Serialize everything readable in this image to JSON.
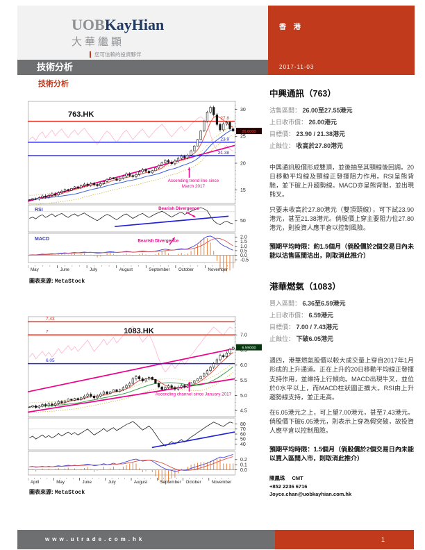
{
  "colors": {
    "accent_red": "#c23a1c",
    "bar_gray": "#6e6f71",
    "logo_navy": "#233a63",
    "logo_gray": "#8f9194",
    "magenta": "#ec008c"
  },
  "header": {
    "logo": {
      "uob": "UOB",
      "kayhian": "KayHian",
      "chinese": "大華繼顯",
      "tagline": "您可信賴的投資夥伴"
    },
    "region": "香 港",
    "section_title": "技術分析",
    "date": "2017-11-03"
  },
  "page": {
    "column_heading": "技術分析"
  },
  "footer": {
    "url": "www.utrade.com.hk",
    "page_number": "1"
  },
  "chart_source": {
    "label": "圖表來源:",
    "value": "MetaStock"
  },
  "stocks": [
    {
      "heading": "中興通訊（763）",
      "details": [
        {
          "label": "沽售區間： ",
          "value": "26.00至27.55港元"
        },
        {
          "label": "上日收市價： ",
          "value": "26.00港元"
        },
        {
          "label": "目標價： ",
          "value": "23.90 / 21.38港元"
        },
        {
          "label": "止蝕位： ",
          "value": "收高於27.80港元"
        }
      ],
      "paragraphs": [
        "中興通訊股價形成雙頂，並後抽至其頸線後回調。20日移動平均線及頸線正發揮阻力作用。RSI呈熊背馳，並下破上升趨勢線。MACD亦呈熊背馳，並出現熊叉。",
        "只要未收高於27.80港元（雙頂頸線），可下試23.90港元，甚至21.38港元。倘股價上穿主要阻力位27.80港元，則投資人應平倉以控制風險。"
      ],
      "note": "預期平均時限：約1.5個月（倘股價於2個交易日內未能以沽售區間沽出，則取消此推介）"
    },
    {
      "heading": "港華燃氣（1083）",
      "details": [
        {
          "label": "買入區間： ",
          "value": "6.36至6.59港元"
        },
        {
          "label": "上日收市價： ",
          "value": "6.59港元"
        },
        {
          "label": "目標價： ",
          "value": "7.00 / 7.43港元"
        },
        {
          "label": "止蝕位： ",
          "value": "下破6.05港元"
        }
      ],
      "paragraphs": [
        "週四，港華燃氣股價以較大成交量上穿自2017年1月形成的上升通道。正在上升的20日移動平均線正發揮支持作用，並維持上行傾向。MACD出現牛叉，並位於0水平以上，而MACD柱狀圖正擴大。RSI由上升趨勢線支持，並正走高。",
        "在6.05港元之上，可上望7.00港元，甚至7.43港元。倘股價下破6.05港元，則表示上穿為假突破，故投資人應平倉以控制風險。"
      ],
      "note": "預期平均時限：1.5個月（倘股價於2個交易日內未能以買入區間入市，則取消此推介）"
    }
  ],
  "analyst": {
    "name": "陳鳳珠",
    "title": "CMT",
    "phone": "+852 2236 6716",
    "email": "Joyce.chan@uobkayhian.com.hk"
  },
  "chart_data": [
    {
      "type": "candlestick",
      "label": "763.HK",
      "colors": {
        "magenta": "#ec008c"
      },
      "ma_colors": [
        "#e05544",
        "#3a5fd9"
      ],
      "months": [
        "May",
        "June",
        "July",
        "August",
        "September",
        "October",
        "November"
      ],
      "price_ticks": [
        {
          "v": 30,
          "label": "30"
        },
        {
          "v": 25,
          "label": "25"
        },
        {
          "v": 20,
          "label": "20"
        },
        {
          "v": 15,
          "label": "15"
        }
      ],
      "levels": [
        {
          "value": 27.8,
          "label": "27.8",
          "color": "#e03022"
        },
        {
          "value": 23.9,
          "label": "23.9",
          "color": "#2a2ad0"
        },
        {
          "value": 21.38,
          "label": "21.38",
          "color": "#2a2ad0"
        }
      ],
      "last": {
        "value": 26.0,
        "text": "26.0000",
        "bg": "#230303",
        "fg": "#ff4433"
      },
      "trendlines": [
        {
          "x1": 0,
          "p1": 12.9,
          "x2": 1,
          "p2": 23.3
        }
      ],
      "annotation": {
        "lines": [
          "Ascending trend line since",
          "March 2017"
        ],
        "x": 0.8,
        "price": 16.5,
        "arrow_x": 0.78,
        "arrow_from": 17.3,
        "arrow_to": 19.2
      },
      "rsi_label": "RSI",
      "rsi_grid": 70,
      "rsi_ticks": [
        50
      ],
      "rsi_trendline": {
        "x1": 0.42,
        "v1": 37,
        "x2": 0.97,
        "v2": 60
      },
      "rsi_annotation": {
        "text": "Bearish Divergence",
        "x": 0.73,
        "v": 74,
        "ax1": 0.765,
        "av1": 69,
        "ax2": 0.81,
        "av2": 58
      },
      "macd_label": "MACD",
      "macd_ticks": [
        2.0,
        1.5,
        1.0,
        0.5,
        0.0,
        -0.5
      ],
      "macd_annotation": {
        "text": "Bearish Divergence",
        "x": 0.63,
        "v": 1.45,
        "ax1": 0.685,
        "av1": 1.15,
        "ax2": 0.71,
        "av2": 1.95
      },
      "closes": [
        13.2,
        13.4,
        13.3,
        13.6,
        13.9,
        13.7,
        14.0,
        14.3,
        14.1,
        14.5,
        14.8,
        15.1,
        14.9,
        15.3,
        15.6,
        15.4,
        15.8,
        16.1,
        15.9,
        16.2,
        16.0,
        15.8,
        16.2,
        16.6,
        17.0,
        17.3,
        17.1,
        16.8,
        17.2,
        17.6,
        18.0,
        17.7,
        17.5,
        17.9,
        18.4,
        18.8,
        18.5,
        18.2,
        18.6,
        19.1,
        19.6,
        20.1,
        20.5,
        20.2,
        19.9,
        20.4,
        20.9,
        21.3,
        21.0,
        21.5,
        22.3,
        23.2,
        24.4,
        26.0,
        27.8,
        29.5,
        30.4,
        29.0,
        27.2,
        26.2,
        27.3,
        27.6,
        26.4,
        26.0
      ],
      "rsi": [
        55,
        58,
        54,
        60,
        63,
        57,
        61,
        65,
        59,
        63,
        66,
        61,
        57,
        62,
        65,
        60,
        64,
        67,
        62,
        58,
        54,
        50,
        55,
        60,
        64,
        61,
        56,
        52,
        57,
        62,
        65,
        60,
        55,
        59,
        63,
        66,
        61,
        57,
        61,
        65,
        68,
        71,
        67,
        62,
        58,
        62,
        66,
        69,
        64,
        67,
        71,
        74,
        77,
        79,
        76,
        72,
        60,
        50,
        44,
        41,
        46,
        49,
        45,
        43
      ],
      "macd": [
        0.02,
        0.05,
        0.04,
        0.08,
        0.12,
        0.1,
        0.13,
        0.17,
        0.14,
        0.18,
        0.22,
        0.26,
        0.22,
        0.26,
        0.3,
        0.27,
        0.31,
        0.35,
        0.31,
        0.33,
        0.28,
        0.22,
        0.24,
        0.29,
        0.35,
        0.39,
        0.36,
        0.3,
        0.32,
        0.37,
        0.42,
        0.38,
        0.33,
        0.35,
        0.41,
        0.46,
        0.42,
        0.37,
        0.39,
        0.45,
        0.52,
        0.6,
        0.66,
        0.61,
        0.55,
        0.59,
        0.66,
        0.72,
        0.66,
        0.71,
        0.85,
        1.02,
        1.25,
        1.55,
        1.85,
        2.05,
        2.1,
        1.95,
        1.65,
        1.3,
        1.05,
        0.9,
        0.7,
        0.55
      ],
      "axis": {
        "price_range": [
          12.5,
          31.5
        ],
        "rsi_range": [
          25,
          85
        ],
        "macd_range": [
          -0.8,
          2.4
        ]
      }
    },
    {
      "type": "candlestick",
      "label": "1083.HK",
      "colors": {
        "magenta": "#ec008c"
      },
      "ma_colors": [
        "#e05544",
        "#3aa14a"
      ],
      "months": [
        "April",
        "May",
        "June",
        "July",
        "August",
        "September",
        "October",
        "November"
      ],
      "price_ticks": [
        {
          "v": 7.0,
          "label": "7.0"
        },
        {
          "v": 6.5,
          "label": "6.5"
        },
        {
          "v": 6.0,
          "label": "6.0"
        },
        {
          "v": 5.5,
          "label": "5.5"
        },
        {
          "v": 5.0,
          "label": "5.0"
        },
        {
          "v": 4.5,
          "label": "4.5"
        }
      ],
      "levels": [
        {
          "value": 7.43,
          "label": "7.43",
          "color": "#e03022"
        },
        {
          "value": 7.0,
          "label": "7",
          "color": "#e03022"
        },
        {
          "value": 6.05,
          "label": "6.05",
          "color": "#2a2ad0"
        }
      ],
      "last": {
        "value": 6.59,
        "text": "6.59000",
        "bg": "#06350f",
        "fg": "#e8ffe8"
      },
      "trendlines": [
        {
          "x1": 0,
          "p1": 4.45,
          "x2": 1,
          "p2": 5.55
        },
        {
          "x1": 0,
          "p1": 5.12,
          "x2": 1,
          "p2": 6.55
        }
      ],
      "annotation": {
        "lines": [
          "Ascending channel since January 2017"
        ],
        "x": 0.8,
        "price": 5.0,
        "arrow_x": 0.78,
        "arrow_from": 5.13,
        "arrow_to": 5.45
      },
      "rsi_grid": 70,
      "rsi_ticks": [
        80,
        70,
        60,
        50,
        40
      ],
      "rsi_trendline": {
        "x1": 0.6,
        "v1": 33,
        "x2": 1.0,
        "v2": 64
      },
      "macd_ticks": [
        0.2,
        0.1,
        0.0
      ],
      "closes": [
        4.62,
        4.66,
        4.6,
        4.65,
        4.7,
        4.66,
        4.72,
        4.68,
        4.74,
        4.8,
        4.76,
        4.82,
        4.88,
        4.84,
        4.9,
        4.86,
        4.92,
        4.98,
        5.04,
        4.98,
        4.92,
        4.98,
        5.05,
        5.12,
        5.06,
        5.12,
        5.19,
        5.13,
        5.19,
        5.26,
        5.33,
        5.4,
        5.55,
        5.62,
        5.55,
        5.48,
        5.54,
        5.6,
        5.53,
        5.4,
        5.28,
        5.2,
        5.26,
        5.32,
        5.26,
        5.21,
        5.27,
        5.33,
        5.28,
        5.34,
        5.41,
        5.48,
        5.55,
        5.63,
        5.72,
        5.82,
        5.93,
        6.05,
        6.18,
        6.32,
        6.28,
        6.4,
        6.52,
        6.59
      ],
      "rsi": [
        52,
        56,
        50,
        54,
        58,
        53,
        57,
        52,
        56,
        61,
        56,
        60,
        64,
        59,
        63,
        58,
        62,
        66,
        70,
        64,
        58,
        62,
        66,
        71,
        65,
        69,
        73,
        67,
        71,
        75,
        79,
        82,
        85,
        80,
        74,
        68,
        72,
        76,
        69,
        60,
        50,
        42,
        36,
        40,
        45,
        40,
        44,
        49,
        44,
        49,
        54,
        58,
        63,
        67,
        72,
        76,
        80,
        84,
        81,
        78,
        75,
        80,
        84,
        82
      ],
      "macd": [
        0.06,
        0.07,
        0.05,
        0.06,
        0.07,
        0.06,
        0.07,
        0.06,
        0.07,
        0.08,
        0.07,
        0.08,
        0.09,
        0.08,
        0.09,
        0.08,
        0.09,
        0.1,
        0.11,
        0.1,
        0.08,
        0.09,
        0.1,
        0.12,
        0.1,
        0.11,
        0.13,
        0.11,
        0.12,
        0.14,
        0.16,
        0.18,
        0.2,
        0.21,
        0.19,
        0.17,
        0.18,
        0.19,
        0.17,
        0.13,
        0.09,
        0.05,
        0.02,
        0.0,
        -0.01,
        -0.03,
        -0.02,
        0.0,
        -0.01,
        0.01,
        0.03,
        0.05,
        0.07,
        0.09,
        0.11,
        0.13,
        0.16,
        0.19,
        0.22,
        0.25,
        0.24,
        0.26,
        0.28,
        0.3
      ],
      "axis": {
        "price_range": [
          4.3,
          7.6
        ],
        "rsi_range": [
          28,
          92
        ],
        "macd_range": [
          -0.1,
          0.36
        ]
      }
    }
  ]
}
